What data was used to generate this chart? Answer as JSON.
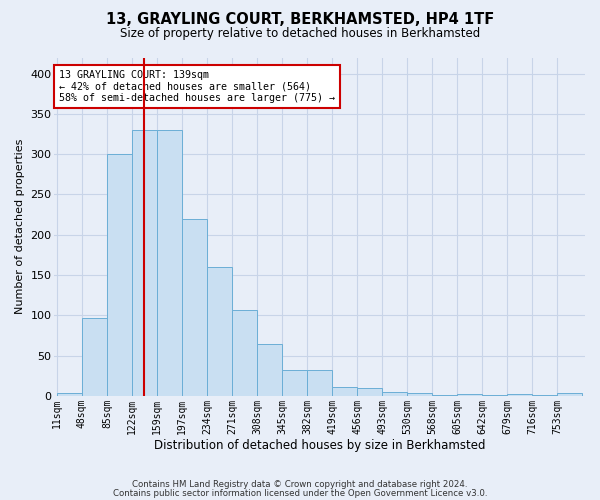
{
  "title": "13, GRAYLING COURT, BERKHAMSTED, HP4 1TF",
  "subtitle": "Size of property relative to detached houses in Berkhamsted",
  "xlabel": "Distribution of detached houses by size in Berkhamsted",
  "ylabel": "Number of detached properties",
  "footnote1": "Contains HM Land Registry data © Crown copyright and database right 2024.",
  "footnote2": "Contains public sector information licensed under the Open Government Licence v3.0.",
  "bar_labels": [
    "11sqm",
    "48sqm",
    "85sqm",
    "122sqm",
    "159sqm",
    "197sqm",
    "234sqm",
    "271sqm",
    "308sqm",
    "345sqm",
    "382sqm",
    "419sqm",
    "456sqm",
    "493sqm",
    "530sqm",
    "568sqm",
    "605sqm",
    "642sqm",
    "679sqm",
    "716sqm",
    "753sqm"
  ],
  "bar_heights": [
    4,
    97,
    300,
    330,
    330,
    220,
    160,
    107,
    65,
    32,
    32,
    11,
    10,
    5,
    4,
    1,
    2,
    1,
    2,
    1,
    3
  ],
  "bar_color": "#c9dff2",
  "bar_edgecolor": "#6baed6",
  "property_line_x": 3.65,
  "annotation_label": "13 GRAYLING COURT: 139sqm",
  "annotation_line1": "← 42% of detached houses are smaller (564)",
  "annotation_line2": "58% of semi-detached houses are larger (775) →",
  "annotation_box_facecolor": "#ffffff",
  "annotation_box_edgecolor": "#cc0000",
  "vline_color": "#cc0000",
  "ylim": [
    0,
    420
  ],
  "yticks": [
    0,
    50,
    100,
    150,
    200,
    250,
    300,
    350,
    400
  ],
  "grid_color": "#c8d4e8",
  "background_color": "#e8eef8",
  "title_fontsize": 10.5,
  "subtitle_fontsize": 8.5
}
